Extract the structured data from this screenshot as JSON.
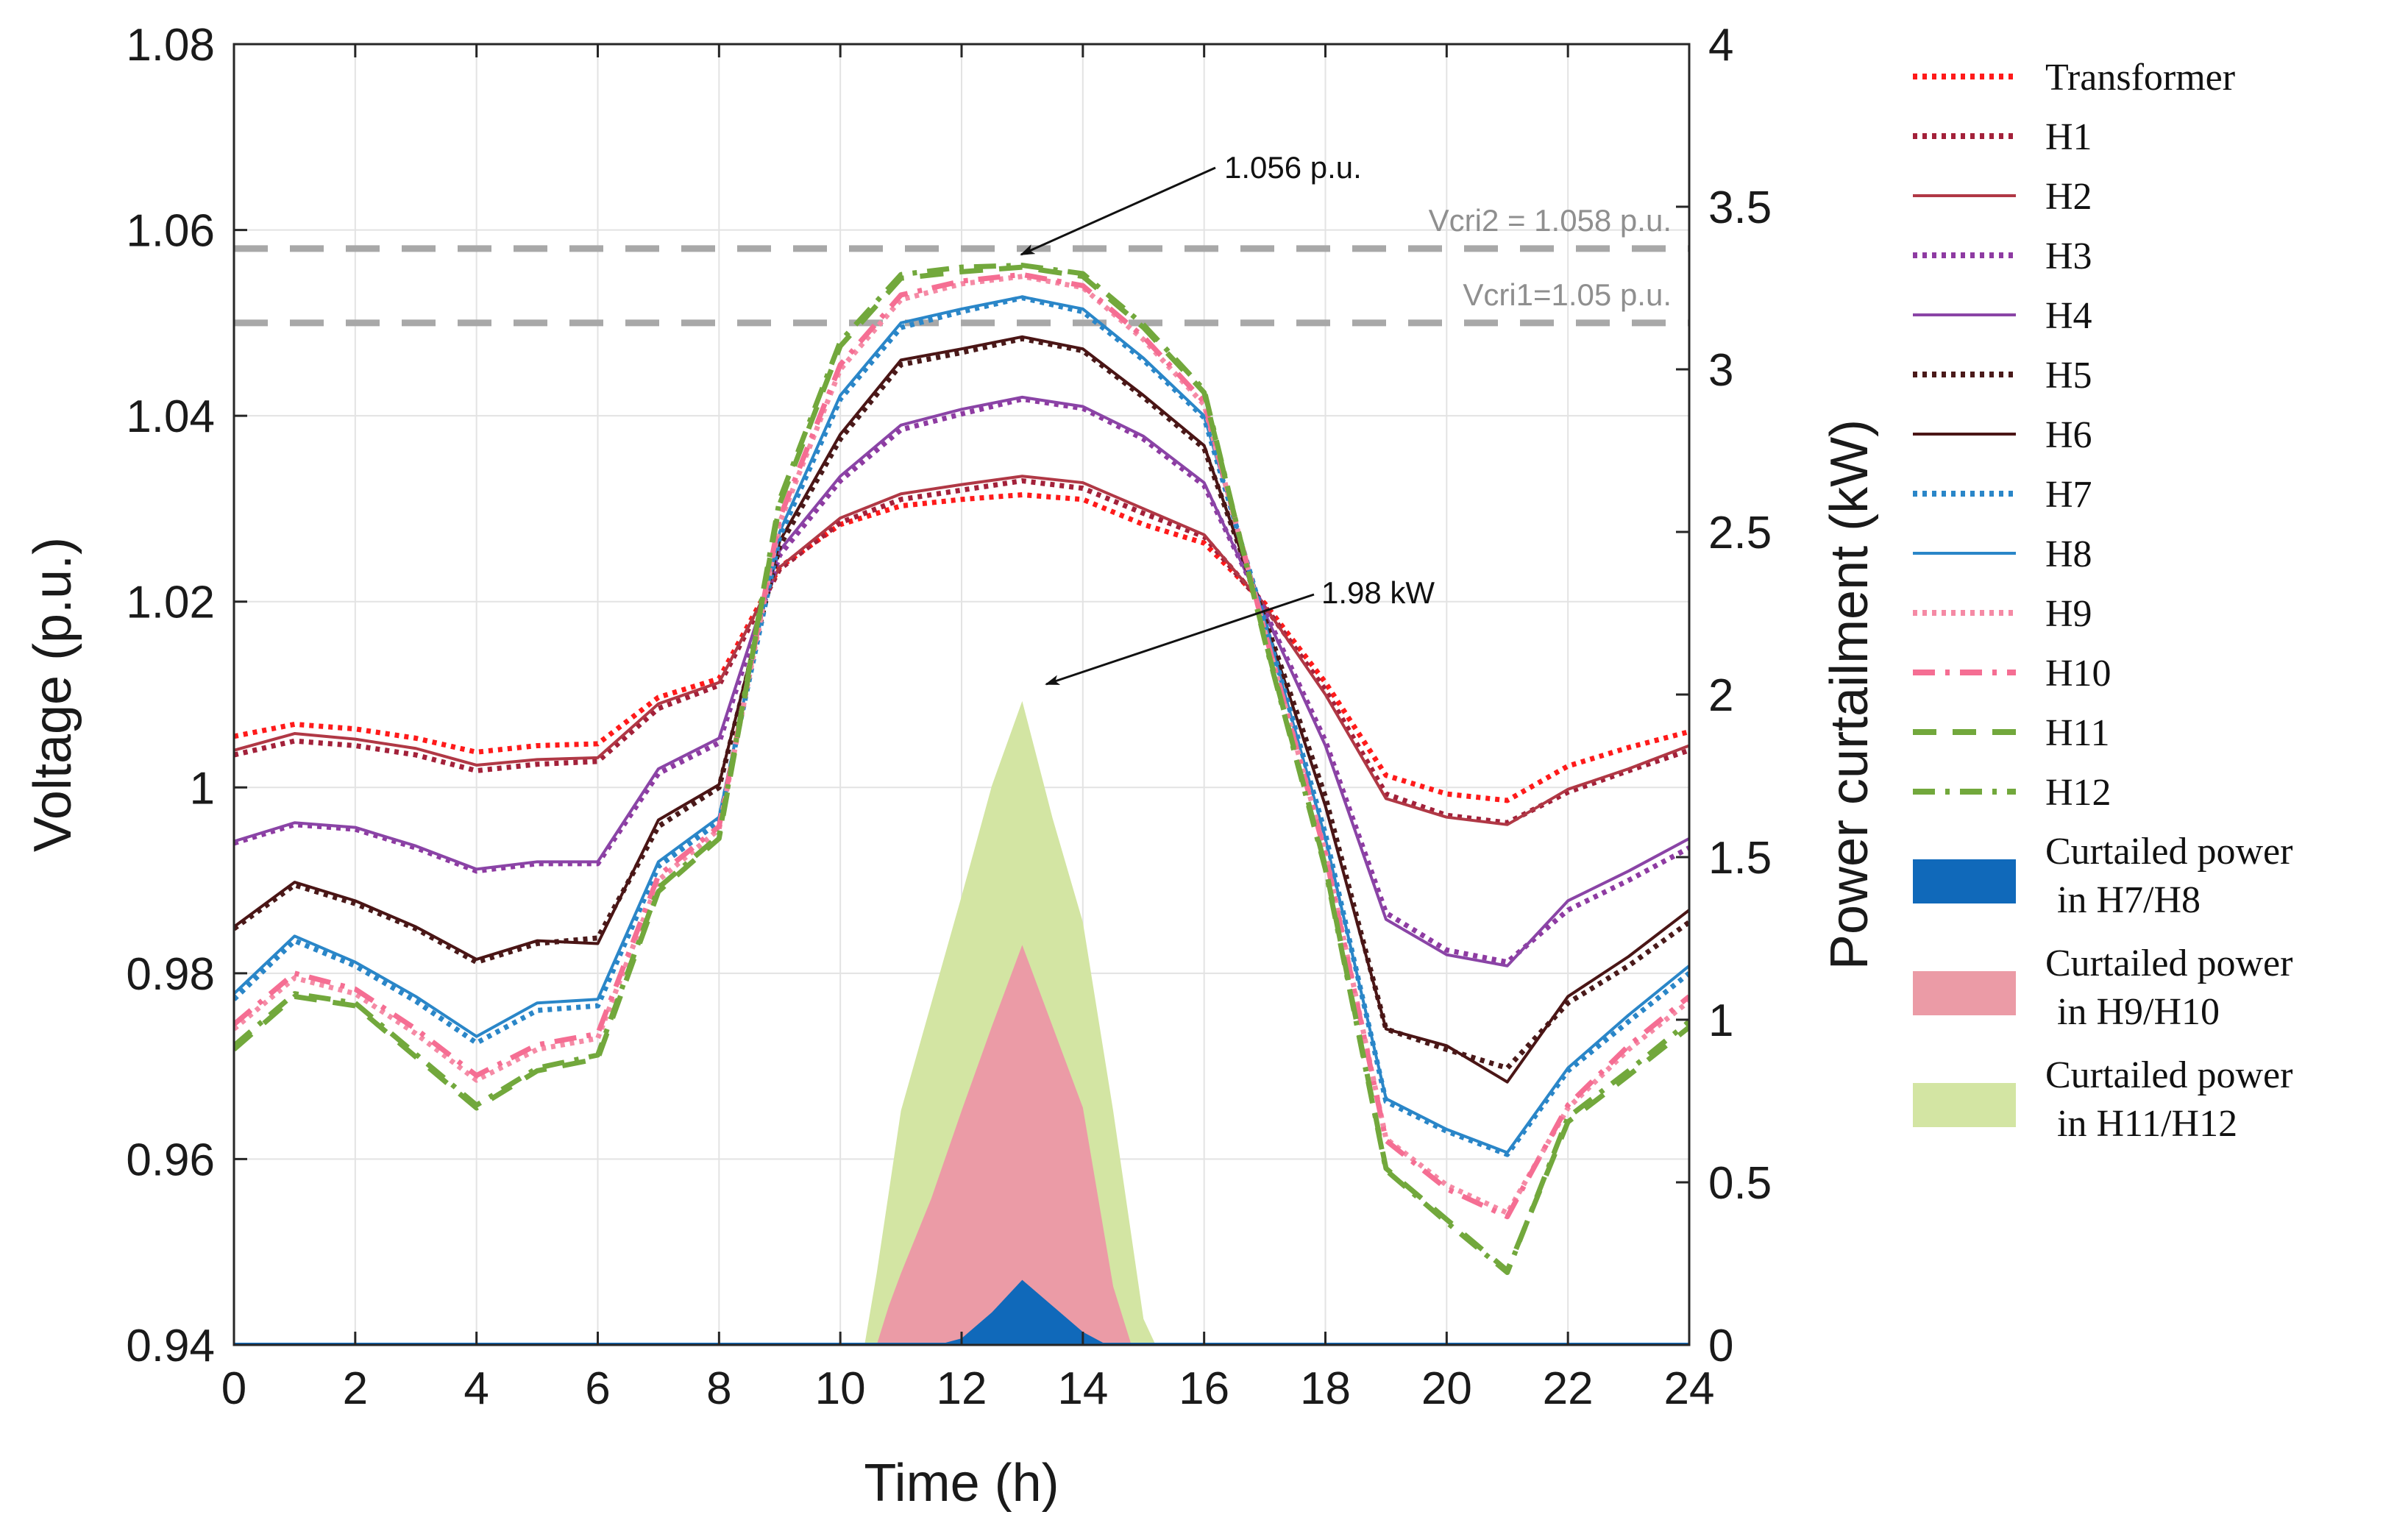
{
  "chart_data": {
    "type": "line",
    "xlabel": "Time (h)",
    "ylabel_left": "Voltage (p.u.)",
    "ylabel_right": "Power curtailment (kW)",
    "xlim": [
      0,
      24
    ],
    "ylim_left": [
      0.94,
      1.08
    ],
    "ylim_right": [
      0,
      4
    ],
    "grid": true,
    "legend_position": "outside-right",
    "x_ticks": [
      "0",
      "2",
      "4",
      "6",
      "8",
      "10",
      "12",
      "14",
      "16",
      "18",
      "20",
      "22",
      "24"
    ],
    "y_ticks_left": [
      "0.94",
      "0.96",
      "0.98",
      "1",
      "1.02",
      "1.04",
      "1.06",
      "1.08"
    ],
    "y_ticks_right": [
      "0",
      "0.5",
      "1",
      "1.5",
      "2",
      "2.5",
      "3",
      "3.5",
      "4"
    ],
    "x": [
      0,
      1,
      2,
      3,
      4,
      5,
      6,
      7,
      8,
      9,
      10,
      11,
      12,
      13,
      14,
      15,
      16,
      17,
      18,
      19,
      20,
      21,
      22,
      23,
      24
    ],
    "series": [
      {
        "name": "Transformer",
        "color": "#ff1a1a",
        "style": "dotted",
        "values": [
          1.0055,
          1.0068,
          1.0063,
          1.0053,
          1.0038,
          1.0045,
          1.0047,
          1.0097,
          1.0117,
          1.0237,
          1.0283,
          1.0303,
          1.031,
          1.0315,
          1.031,
          1.0283,
          1.0263,
          1.0198,
          1.0113,
          1.0013,
          0.9993,
          0.9986,
          1.0023,
          1.0043,
          1.006
        ]
      },
      {
        "name": "H1",
        "color": "#a3213a",
        "style": "dotted",
        "values": [
          1.0035,
          1.005,
          1.0045,
          1.0035,
          1.0018,
          1.0025,
          1.0028,
          1.0085,
          1.011,
          1.0235,
          1.0285,
          1.031,
          1.032,
          1.033,
          1.0322,
          1.0295,
          1.027,
          1.0195,
          1.0105,
          0.9993,
          0.997,
          0.9962,
          0.9995,
          1.0018,
          1.004
        ]
      },
      {
        "name": "H2",
        "color": "#b03845",
        "style": "solid",
        "values": [
          1.004,
          1.0058,
          1.0052,
          1.0042,
          1.0024,
          1.003,
          1.0032,
          1.009,
          1.0113,
          1.0237,
          1.029,
          1.0316,
          1.0326,
          1.0335,
          1.0328,
          1.03,
          1.0272,
          1.0195,
          1.01,
          0.9988,
          0.9968,
          0.996,
          0.9998,
          1.002,
          1.0045
        ]
      },
      {
        "name": "H3",
        "color": "#8e3ba2",
        "style": "dotted",
        "values": [
          0.994,
          0.996,
          0.9955,
          0.9935,
          0.991,
          0.9918,
          0.9918,
          1.0015,
          1.0048,
          1.025,
          1.033,
          1.0385,
          1.0402,
          1.0418,
          1.0408,
          1.0375,
          1.0325,
          1.019,
          1.005,
          0.9865,
          0.9825,
          0.9812,
          0.9868,
          0.99,
          0.9935
        ]
      },
      {
        "name": "H4",
        "color": "#8a44a6",
        "style": "solid",
        "values": [
          0.9942,
          0.9962,
          0.9957,
          0.9937,
          0.9912,
          0.992,
          0.992,
          1.002,
          1.0053,
          1.0255,
          1.0335,
          1.039,
          1.0407,
          1.042,
          1.041,
          1.0378,
          1.0328,
          1.0188,
          1.0045,
          0.9858,
          0.982,
          0.9808,
          0.9878,
          0.991,
          0.9945
        ]
      },
      {
        "name": "H5",
        "color": "#4a1a1a",
        "style": "dotted",
        "values": [
          0.9848,
          0.9895,
          0.9875,
          0.9848,
          0.9812,
          0.9832,
          0.9838,
          0.9958,
          1.0,
          1.026,
          1.0375,
          1.0455,
          1.0468,
          1.0483,
          1.047,
          1.042,
          1.0365,
          1.0182,
          0.999,
          0.974,
          0.9718,
          0.9698,
          0.9768,
          0.9808,
          0.9855
        ]
      },
      {
        "name": "H6",
        "color": "#4a1515",
        "style": "solid",
        "values": [
          0.985,
          0.9898,
          0.9878,
          0.985,
          0.9815,
          0.9835,
          0.9832,
          0.9965,
          1.0003,
          1.0265,
          1.038,
          1.046,
          1.0472,
          1.0485,
          1.0472,
          1.0422,
          1.0368,
          1.018,
          0.998,
          0.974,
          0.9722,
          0.9683,
          0.9775,
          0.9818,
          0.9868
        ]
      },
      {
        "name": "H7",
        "color": "#2a86c8",
        "style": "dotted",
        "values": [
          0.9772,
          0.9835,
          0.9808,
          0.977,
          0.9725,
          0.976,
          0.9765,
          0.9915,
          0.9963,
          1.027,
          1.0418,
          1.0495,
          1.0512,
          1.0527,
          1.0512,
          1.046,
          1.0398,
          1.0178,
          0.995,
          0.9662,
          0.963,
          0.9605,
          0.9695,
          0.9748,
          0.98
        ]
      },
      {
        "name": "H8",
        "color": "#2a86c8",
        "style": "solid",
        "values": [
          0.9778,
          0.984,
          0.9812,
          0.9775,
          0.9732,
          0.9768,
          0.9772,
          0.992,
          0.9968,
          1.0275,
          1.0422,
          1.05,
          1.0515,
          1.0528,
          1.0515,
          1.0462,
          1.04,
          1.0178,
          0.9945,
          0.9665,
          0.9632,
          0.9607,
          0.9698,
          0.9755,
          0.9808
        ]
      },
      {
        "name": "H9",
        "color": "#f58aa5",
        "style": "dotted",
        "values": [
          0.974,
          0.9795,
          0.9778,
          0.9735,
          0.9685,
          0.9718,
          0.973,
          0.99,
          0.9955,
          1.0285,
          1.045,
          1.0525,
          1.0542,
          1.055,
          1.0538,
          1.0482,
          1.0412,
          1.0168,
          0.993,
          0.9622,
          0.9572,
          0.9542,
          0.9655,
          0.9718,
          0.977
        ]
      },
      {
        "name": "H10",
        "color": "#f56e93",
        "style": "dashdot",
        "values": [
          0.9745,
          0.98,
          0.9783,
          0.974,
          0.969,
          0.9723,
          0.9735,
          0.9905,
          0.9958,
          1.029,
          1.0455,
          1.053,
          1.0545,
          1.0552,
          1.054,
          1.0485,
          1.0415,
          1.0168,
          0.9928,
          0.962,
          0.9568,
          0.9538,
          0.9658,
          0.9722,
          0.9775
        ]
      },
      {
        "name": "H11",
        "color": "#72a83c",
        "style": "dashed",
        "values": [
          0.9718,
          0.9775,
          0.9765,
          0.971,
          0.9655,
          0.9695,
          0.9708,
          0.9888,
          0.9945,
          1.0305,
          1.0475,
          1.0548,
          1.0555,
          1.056,
          1.055,
          1.0495,
          1.0425,
          1.016,
          0.9915,
          0.959,
          0.9535,
          0.948,
          0.964,
          0.969,
          0.9742
        ]
      },
      {
        "name": "H12",
        "color": "#72a83c",
        "style": "dashdot",
        "values": [
          0.9722,
          0.9778,
          0.9768,
          0.9713,
          0.9658,
          0.9698,
          0.9712,
          0.9892,
          0.9948,
          1.031,
          1.048,
          1.0552,
          1.056,
          1.0562,
          1.0553,
          1.0498,
          1.0428,
          1.0158,
          0.9912,
          0.9588,
          0.9532,
          0.9478,
          0.9645,
          0.9695,
          0.9748
        ]
      }
    ],
    "areas": [
      {
        "name": "Curtailed power in H11/H12",
        "color": "#d3e5a3",
        "x": [
          10.4,
          10.6,
          11.0,
          11.5,
          12.0,
          12.5,
          13.0,
          13.5,
          14.0,
          14.5,
          15.0,
          15.2
        ],
        "values": [
          0,
          0.22,
          0.72,
          1.05,
          1.38,
          1.72,
          1.98,
          1.62,
          1.3,
          0.72,
          0.08,
          0
        ]
      },
      {
        "name": "Curtailed power in H9/H10",
        "color": "#eb9ba6",
        "x": [
          10.6,
          10.8,
          11.0,
          11.5,
          12.0,
          12.5,
          13.0,
          13.5,
          14.0,
          14.5,
          14.8
        ],
        "values": [
          0,
          0.12,
          0.22,
          0.45,
          0.72,
          0.98,
          1.23,
          0.98,
          0.73,
          0.18,
          0
        ]
      },
      {
        "name": "Curtailed power in H7/H8",
        "color": "#1069ba",
        "x": [
          11.6,
          12.0,
          12.5,
          13.0,
          13.5,
          14.0,
          14.4
        ],
        "values": [
          0,
          0.02,
          0.1,
          0.2,
          0.12,
          0.04,
          0
        ]
      }
    ],
    "reference_lines": [
      {
        "value": 1.058,
        "label": "Vcri2 = 1.058 p.u.",
        "color": "#a8a8a8"
      },
      {
        "value": 1.05,
        "label": "Vcri1=1.05 p.u.",
        "color": "#a8a8a8"
      }
    ],
    "annotations": [
      {
        "text": "1.056 p.u.",
        "x": 13.0,
        "y": 1.056,
        "axis": "left"
      },
      {
        "text": "1.98 kW",
        "x": 13.4,
        "y": 2.0,
        "axis": "right"
      }
    ],
    "legend": {
      "entries": [
        "Transformer",
        "H1",
        "H2",
        "H3",
        "H4",
        "H5",
        "H6",
        "H7",
        "H8",
        "H9",
        "H10",
        "H11",
        "H12"
      ],
      "area_entries": [
        {
          "line1": "Curtailed power",
          "line2": "in H7/H8",
          "color": "#1069ba"
        },
        {
          "line1": "Curtailed power",
          "line2": "in H9/H10",
          "color": "#eb9ba6"
        },
        {
          "line1": "Curtailed power",
          "line2": "in H11/H12",
          "color": "#d3e5a3"
        }
      ]
    }
  }
}
